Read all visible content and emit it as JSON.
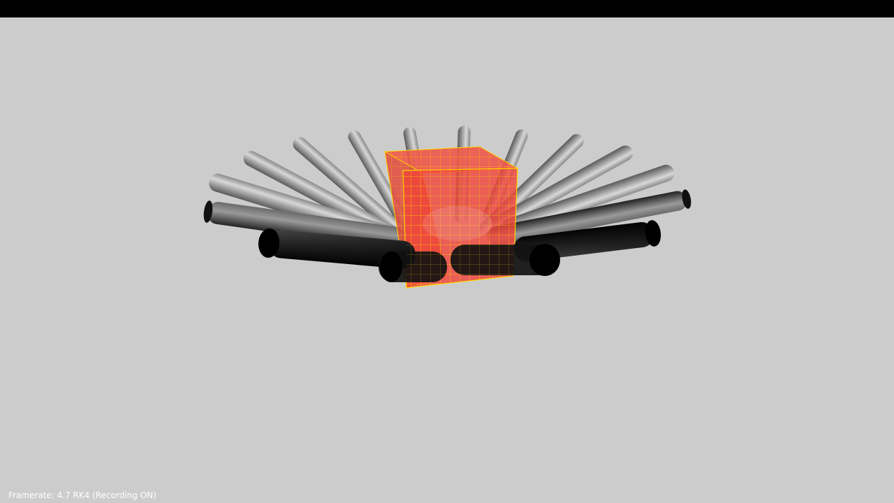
{
  "status": {
    "framerate_text": "Framerate: 4.7 RK4 (Recording ON)"
  },
  "colors": {
    "background": "#cccccc",
    "title_bar": "#000000",
    "cube_fill": "#f0453a",
    "cube_wire": "#ffd700",
    "status_text": "#ffffff"
  }
}
